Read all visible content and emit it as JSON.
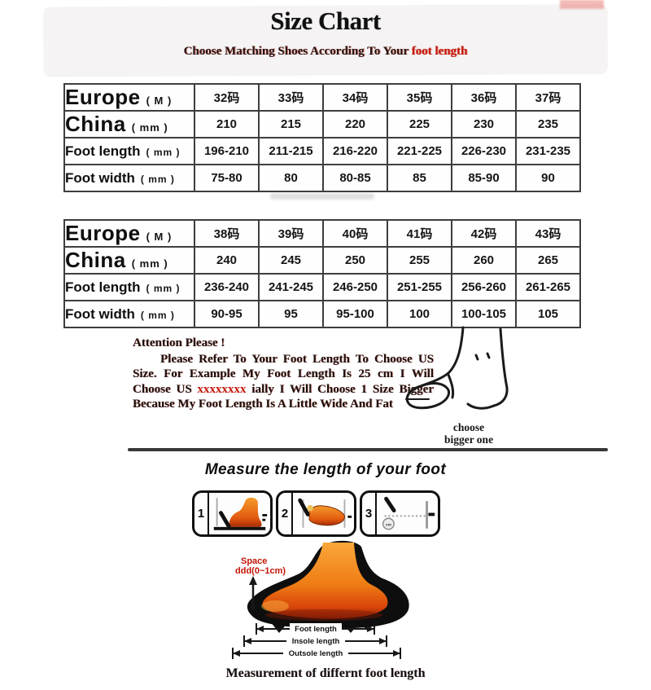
{
  "header": {
    "title": "Size Chart",
    "subtitle_main": "Choose Matching Shoes According To Your ",
    "subtitle_accent": "foot length"
  },
  "size_tables": [
    {
      "rows": [
        {
          "label": "Europe",
          "unit": "( M )",
          "big": true,
          "cells": [
            "32码",
            "33码",
            "34码",
            "35码",
            "36码",
            "37码"
          ]
        },
        {
          "label": "China",
          "unit": "( mm )",
          "big": true,
          "cells": [
            "210",
            "215",
            "220",
            "225",
            "230",
            "235"
          ]
        },
        {
          "label": "Foot length",
          "unit": "( mm )",
          "big": false,
          "cells": [
            "196-210",
            "211-215",
            "216-220",
            "221-225",
            "226-230",
            "231-235"
          ]
        },
        {
          "label": "Foot width",
          "unit": "( mm )",
          "big": false,
          "cells": [
            "75-80",
            "80",
            "80-85",
            "85",
            "85-90",
            "90"
          ]
        }
      ]
    },
    {
      "rows": [
        {
          "label": "Europe",
          "unit": "( M )",
          "big": true,
          "cells": [
            "38码",
            "39码",
            "40码",
            "41码",
            "42码",
            "43码"
          ]
        },
        {
          "label": "China",
          "unit": "( mm )",
          "big": true,
          "cells": [
            "240",
            "245",
            "250",
            "255",
            "260",
            "265"
          ]
        },
        {
          "label": "Foot length",
          "unit": "( mm )",
          "big": false,
          "cells": [
            "236-240",
            "241-245",
            "246-250",
            "251-255",
            "256-260",
            "261-265"
          ]
        },
        {
          "label": "Foot width",
          "unit": "( mm )",
          "big": false,
          "cells": [
            "90-95",
            "95",
            "95-100",
            "100",
            "100-105",
            "105"
          ]
        }
      ]
    }
  ],
  "attention": {
    "heading": "Attention Please !",
    "body_1": "Please Refer To Your Foot Length To Choose US Size. For Example My Foot Length Is 25 cm I Will Choose US ",
    "redacted": "xxxxxxxx",
    "body_2": " ially I Will Choose 1 Size Bigger Because My Foot Length Is A Little Wide And Fat",
    "note_line1": "choose",
    "note_line2": "bigger one"
  },
  "measure": {
    "heading": "Measure the length of your foot",
    "steps": [
      "1",
      "2",
      "3"
    ],
    "step3_circle_label": "cm",
    "caption": "Measurement of differnt foot length"
  },
  "foot_diagram": {
    "space_line1": "Space",
    "space_line2": "ddd(0~1cm)",
    "arrows": [
      "Foot length",
      "Insole length",
      "Outsole length"
    ]
  },
  "colors": {
    "accent_red": "#c2170a",
    "foot_orange": "#ee7c14",
    "ink": "#141414",
    "table_border": "#3e3e3e"
  }
}
